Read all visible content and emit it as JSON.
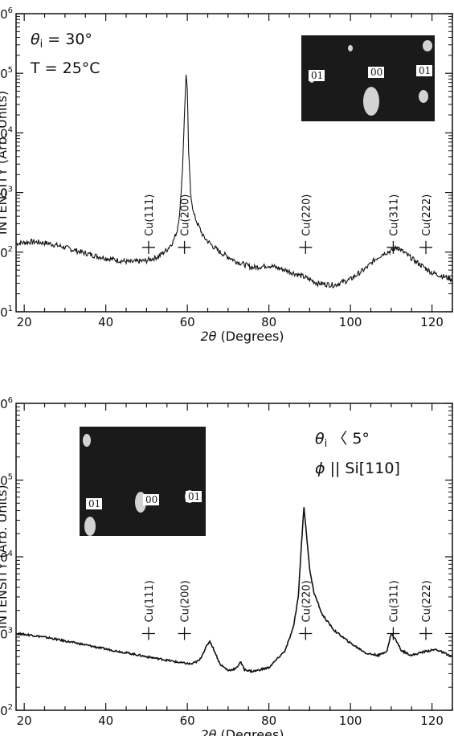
{
  "chart_data": [
    {
      "type": "line",
      "x_label_var": "2θ",
      "x_label_unit": "(Degrees)",
      "ylabel": "INTENSITY (Arb. Units)",
      "xlim": [
        18,
        125
      ],
      "ylim": [
        10,
        1000000
      ],
      "y_scale": "log",
      "x_ticks": [
        20,
        40,
        60,
        80,
        100,
        120
      ],
      "y_ticks": [
        {
          "value": 10,
          "label": "10"
        },
        {
          "value": 100,
          "label": "10"
        },
        {
          "value": 1000,
          "label": "10"
        },
        {
          "value": 10000,
          "label": "10"
        },
        {
          "value": 100000,
          "label": "10"
        },
        {
          "value": 1000000,
          "label": "10"
        }
      ],
      "y_tick_exponents": [
        "1",
        "2",
        "3",
        "4",
        "5",
        "6"
      ],
      "conditions": [
        {
          "var": "θ",
          "sub": "i",
          "rest": " = 30°"
        },
        {
          "var": "",
          "sub": "",
          "rest": "T = 25°C"
        }
      ],
      "series": [
        {
          "x": [
            18,
            22,
            26,
            30,
            34,
            38,
            42,
            46,
            50,
            53,
            55,
            56.5,
            57.5,
            58.2,
            58.8,
            59.3,
            59.7,
            60.0,
            60.3,
            60.8,
            61.5,
            62.5,
            64,
            66,
            68,
            72,
            76,
            80,
            84,
            88,
            92,
            96,
            100,
            104,
            106,
            108,
            110,
            111.5,
            113,
            116,
            120,
            125
          ],
          "y": [
            140,
            150,
            140,
            120,
            100,
            85,
            75,
            68,
            72,
            85,
            110,
            150,
            230,
            500,
            2500,
            20000,
            100000,
            50000,
            5000,
            1000,
            450,
            300,
            180,
            130,
            100,
            70,
            55,
            60,
            50,
            40,
            30,
            28,
            35,
            55,
            75,
            95,
            105,
            120,
            100,
            70,
            45,
            35
          ]
        }
      ],
      "peak_markers": [
        {
          "label": "Cu(111)",
          "x": 50.5,
          "y": 120
        },
        {
          "label": "Cu(200)",
          "x": 59.3,
          "y": 120
        },
        {
          "label": "Cu(220)",
          "x": 89.0,
          "y": 120
        },
        {
          "label": "Cu(311)",
          "x": 110.5,
          "y": 120
        },
        {
          "label": "Cu(222)",
          "x": 118.5,
          "y": 120
        }
      ],
      "inset": {
        "labels": [
          "01",
          "00",
          "01"
        ]
      }
    },
    {
      "type": "line",
      "x_label_var": "2θ",
      "x_label_unit": "(Degrees)",
      "ylabel": "INTENSITY (Arb. Units)",
      "xlim": [
        18,
        125
      ],
      "ylim": [
        100,
        1000000
      ],
      "y_scale": "log",
      "x_ticks": [
        20,
        40,
        60,
        80,
        100,
        120
      ],
      "y_ticks": [
        {
          "value": 100,
          "label": "10"
        },
        {
          "value": 1000,
          "label": "10"
        },
        {
          "value": 10000,
          "label": "10"
        },
        {
          "value": 100000,
          "label": "10"
        },
        {
          "value": 1000000,
          "label": "10"
        }
      ],
      "y_tick_exponents": [
        "2",
        "3",
        "4",
        "5",
        "6"
      ],
      "conditions": [
        {
          "var": "θ",
          "sub": "i",
          "rest": " 〈 5°"
        },
        {
          "var": "ϕ",
          "sub": "",
          "rest": " || Si[110]"
        }
      ],
      "series": [
        {
          "x": [
            18,
            22,
            26,
            30,
            34,
            38,
            42,
            46,
            50,
            54,
            58,
            61,
            63,
            64.5,
            65.5,
            66.5,
            68,
            70,
            72,
            73,
            74,
            76,
            80,
            84,
            86,
            87.2,
            88.0,
            88.6,
            89.2,
            90.0,
            91,
            93,
            96,
            100,
            104,
            107,
            109,
            110,
            111,
            112.5,
            115,
            118,
            121,
            125
          ],
          "y": [
            1000,
            950,
            880,
            800,
            730,
            660,
            600,
            550,
            500,
            460,
            420,
            400,
            450,
            650,
            800,
            620,
            400,
            330,
            350,
            430,
            340,
            320,
            360,
            600,
            1200,
            3000,
            15000,
            45000,
            20000,
            7000,
            3500,
            1800,
            1100,
            750,
            550,
            520,
            600,
            1000,
            850,
            600,
            520,
            580,
            620,
            500
          ]
        }
      ],
      "peak_markers": [
        {
          "label": "Cu(111)",
          "x": 50.5,
          "y": 1000
        },
        {
          "label": "Cu(200)",
          "x": 59.3,
          "y": 1000
        },
        {
          "label": "Cu(220)",
          "x": 89.0,
          "y": 1000
        },
        {
          "label": "Cu(311)",
          "x": 110.5,
          "y": 1000
        },
        {
          "label": "Cu(222)",
          "x": 118.5,
          "y": 1000
        }
      ],
      "inset": {
        "labels": [
          "01",
          "00",
          "01"
        ]
      }
    }
  ]
}
